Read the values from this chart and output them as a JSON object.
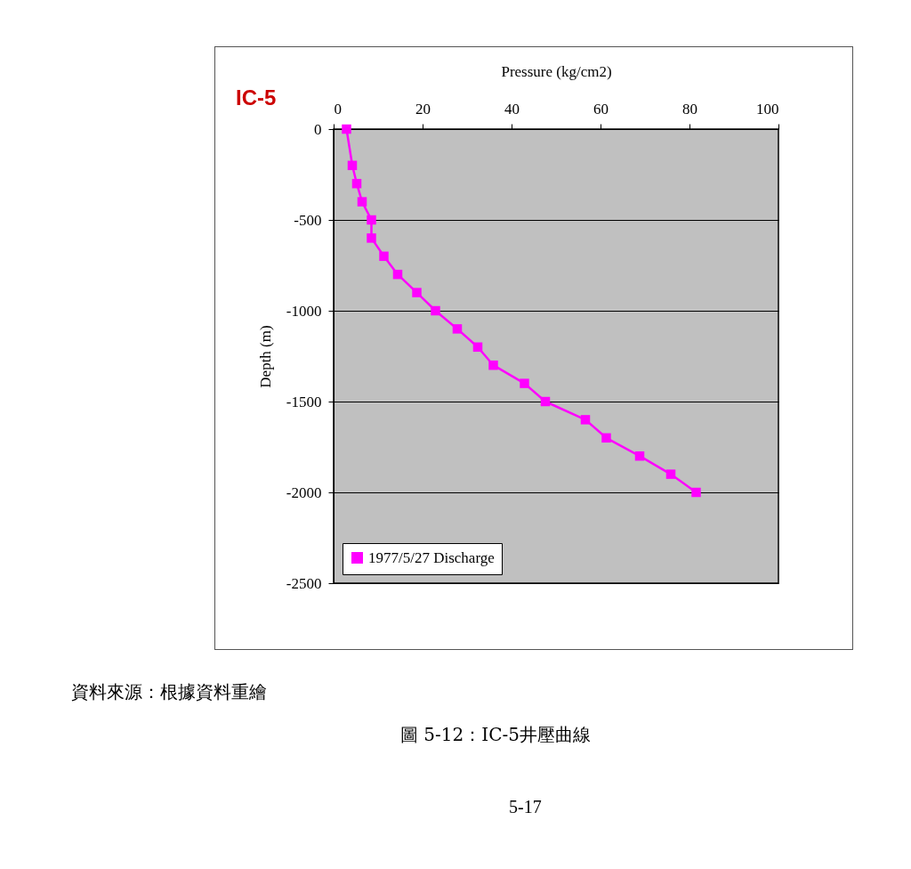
{
  "chart_data": {
    "type": "line",
    "title": "IC-5",
    "xlabel": "Pressure (kg/cm2)",
    "ylabel": "Depth (m)",
    "x": [
      2.9,
      4.2,
      5.2,
      6.4,
      8.5,
      8.5,
      11.3,
      14.4,
      18.7,
      22.9,
      27.8,
      32.4,
      35.9,
      42.9,
      47.6,
      56.6,
      61.3,
      68.8,
      75.8,
      81.5
    ],
    "series": [
      {
        "name": "1977/5/27 Discharge",
        "color": "#ff00ff",
        "values": [
          0,
          -200,
          -300,
          -400,
          -500,
          -600,
          -700,
          -800,
          -900,
          -1000,
          -1100,
          -1200,
          -1300,
          -1400,
          -1500,
          -1600,
          -1700,
          -1800,
          -1900,
          -2000
        ]
      }
    ],
    "xlim": [
      0,
      100
    ],
    "xticks": [
      0,
      20,
      40,
      60,
      80,
      100
    ],
    "ylim": [
      -2500,
      0
    ],
    "yticks": [
      -2500,
      -2000,
      -1500,
      -1000,
      -500,
      0
    ],
    "grid": "y",
    "legend": "bottom left",
    "marker": "square",
    "line_style": "solid",
    "annotations": [
      "資料來源：根據資料重繪",
      "圖 5-12：IC-5井壓曲線",
      "5-17"
    ]
  }
}
